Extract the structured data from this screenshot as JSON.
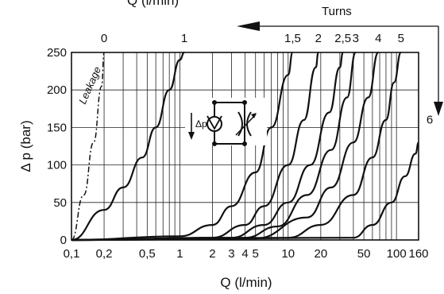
{
  "top_label": "Q (l/min)",
  "turns_label": "Turns",
  "chart_data": {
    "type": "line",
    "x_scale": "log",
    "xlim": [
      0.1,
      160
    ],
    "ylim": [
      0,
      250
    ],
    "xlabel": "Q (l/min)",
    "ylabel": "Δ p (bar)",
    "x_ticks": [
      0.1,
      0.2,
      0.5,
      1,
      2,
      3,
      4,
      5,
      10,
      20,
      50,
      100,
      160
    ],
    "x_tick_labels": [
      "0,1",
      "0,2",
      "0,5",
      "1",
      "2",
      "3",
      "4",
      "5",
      "10",
      "20",
      "50",
      "100",
      "160"
    ],
    "y_ticks": [
      0,
      50,
      100,
      150,
      200,
      250
    ],
    "y_tick_labels": [
      "0",
      "50",
      "100",
      "150",
      "200",
      "250"
    ],
    "grid": true,
    "annotation": "Leakage",
    "series": [
      {
        "name": "0",
        "x": [
          0.1,
          0.13,
          0.16,
          0.19,
          0.2
        ],
        "y": [
          0,
          60,
          130,
          205,
          250
        ]
      },
      {
        "name": "1",
        "x": [
          0.1,
          0.2,
          0.3,
          0.45,
          0.6,
          0.8,
          1.0,
          1.1
        ],
        "y": [
          0,
          40,
          70,
          110,
          150,
          200,
          240,
          250
        ]
      },
      {
        "name": "1,5",
        "x": [
          0.1,
          1.0,
          2.0,
          3.0,
          5.0,
          7.0,
          10.0,
          11.0
        ],
        "y": [
          0,
          5,
          20,
          45,
          90,
          150,
          220,
          250
        ]
      },
      {
        "name": "2",
        "x": [
          0.1,
          2.0,
          4.0,
          6.0,
          10.0,
          14.0,
          18.0,
          19.0
        ],
        "y": [
          0,
          3,
          20,
          45,
          100,
          160,
          230,
          250
        ]
      },
      {
        "name": "2,5",
        "x": [
          0.1,
          3.0,
          6.0,
          10.0,
          16.0,
          24.0,
          30.0,
          32.0
        ],
        "y": [
          0,
          3,
          20,
          50,
          100,
          170,
          230,
          250
        ]
      },
      {
        "name": "3",
        "x": [
          0.1,
          4.0,
          8.0,
          15.0,
          25.0,
          35.0,
          42.0
        ],
        "y": [
          0,
          3,
          18,
          60,
          120,
          190,
          250
        ]
      },
      {
        "name": "4",
        "x": [
          0.1,
          5.0,
          15.0,
          25.0,
          40.0,
          55.0,
          68.0
        ],
        "y": [
          0,
          2,
          30,
          70,
          130,
          190,
          250
        ]
      },
      {
        "name": "5",
        "x": [
          0.1,
          10.0,
          20.0,
          40.0,
          60.0,
          80.0,
          95.0,
          110.0
        ],
        "y": [
          0,
          3,
          20,
          60,
          110,
          160,
          210,
          250
        ]
      },
      {
        "name": "6",
        "x": [
          0.1,
          40.0,
          60.0,
          90.0,
          120.0,
          150.0,
          160.0
        ],
        "y": [
          0,
          3,
          20,
          50,
          85,
          115,
          130
        ]
      }
    ]
  }
}
